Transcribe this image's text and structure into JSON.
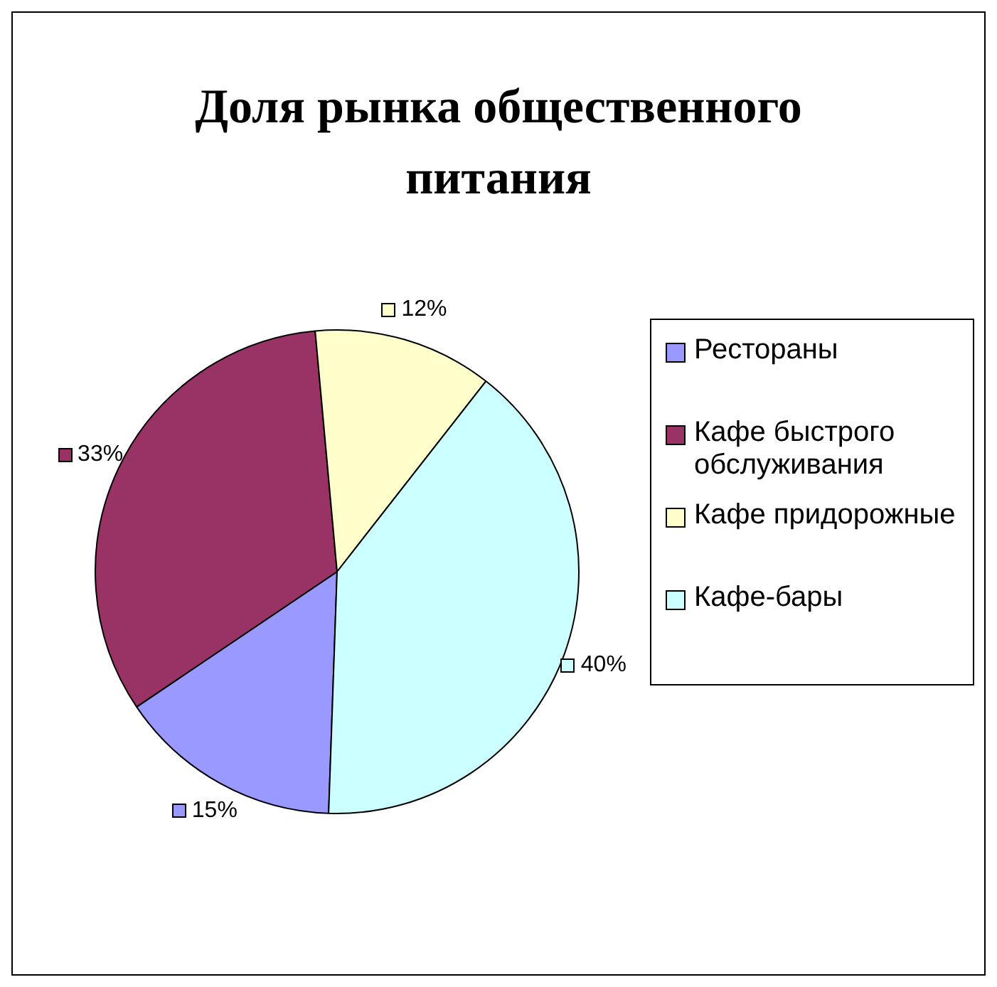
{
  "chart_data": {
    "type": "pie",
    "title": "Доля рынка общественного питания",
    "categories": [
      "Рестораны",
      "Кафе быстрого обслуживания",
      "Кафе придорожные",
      "Кафе-бары"
    ],
    "values": [
      15,
      33,
      12,
      40
    ],
    "colors": [
      "#9999ff",
      "#993366",
      "#ffffcc",
      "#ccffff"
    ],
    "value_labels": [
      "15%",
      "33%",
      "12%",
      "40%"
    ],
    "legend": "right"
  }
}
